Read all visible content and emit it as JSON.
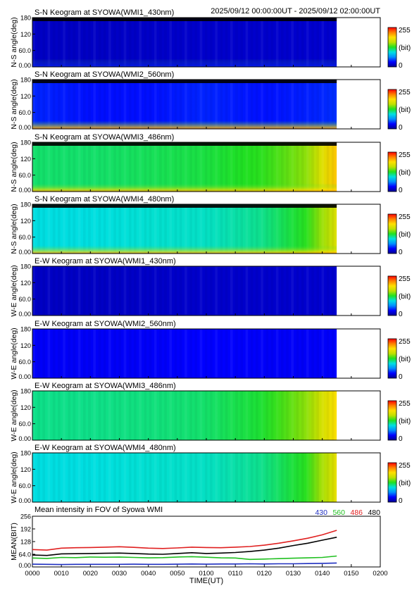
{
  "header": {
    "date_range": "2025/09/12 00:00:00UT - 2025/09/12 02:00:00UT"
  },
  "colorbar": {
    "max_label": "255",
    "unit_label": "(bit)",
    "min_label": "0",
    "colors": [
      "#000090",
      "#0000ff",
      "#0090ff",
      "#00e0e0",
      "#20e020",
      "#c0e000",
      "#ffe000",
      "#ff8000",
      "#ff0000"
    ]
  },
  "chart_data": [
    {
      "type": "heatmap",
      "title": "S-N Keogram at SYOWA(WMI1_430nm)",
      "ylabel": "N-S angle(deg)",
      "yticks": [
        "180",
        "120",
        "60.0",
        "0.00"
      ],
      "ylim": [
        0,
        180
      ],
      "xlim_minutes": [
        0,
        120
      ],
      "data_end_minute": 105,
      "intensity": {
        "time_minutes": [
          0,
          20,
          40,
          60,
          80,
          100,
          105
        ],
        "level_bit": [
          15,
          15,
          16,
          17,
          17,
          18,
          18
        ]
      },
      "edge_enhancement": "low"
    },
    {
      "type": "heatmap",
      "title": "S-N Keogram at SYOWA(WMI2_560nm)",
      "ylabel": "N-S angle(deg)",
      "yticks": [
        "180",
        "120",
        "60.0",
        "0.00"
      ],
      "ylim": [
        0,
        180
      ],
      "xlim_minutes": [
        0,
        120
      ],
      "data_end_minute": 105,
      "intensity": {
        "time_minutes": [
          0,
          20,
          40,
          60,
          80,
          100,
          105
        ],
        "level_bit": [
          40,
          35,
          35,
          40,
          35,
          40,
          42
        ]
      },
      "edge_enhancement": "strong"
    },
    {
      "type": "heatmap",
      "title": "S-N Keogram at SYOWA(WMI3_486nm)",
      "ylabel": "N-S angle(deg)",
      "yticks": [
        "180",
        "120",
        "60.0",
        "0.00"
      ],
      "ylim": [
        0,
        180
      ],
      "xlim_minutes": [
        0,
        120
      ],
      "data_end_minute": 105,
      "intensity": {
        "time_minutes": [
          0,
          20,
          40,
          60,
          80,
          95,
          105
        ],
        "level_bit": [
          115,
          115,
          118,
          122,
          130,
          150,
          200
        ]
      },
      "edge_enhancement": "strong"
    },
    {
      "type": "heatmap",
      "title": "S-N Keogram at SYOWA(WMI4_480nm)",
      "ylabel": "N-S angle(deg)",
      "yticks": [
        "180",
        "120",
        "60.0",
        "0.00"
      ],
      "ylim": [
        0,
        180
      ],
      "xlim_minutes": [
        0,
        120
      ],
      "data_end_minute": 105,
      "intensity": {
        "time_minutes": [
          0,
          20,
          40,
          60,
          80,
          95,
          105
        ],
        "level_bit": [
          95,
          95,
          98,
          100,
          110,
          130,
          175
        ]
      },
      "edge_enhancement": "strong"
    },
    {
      "type": "heatmap",
      "title": "E-W Keogram at SYOWA(WMI1_430nm)",
      "ylabel": "W-E angle(deg)",
      "yticks": [
        "180",
        "120",
        "60.0",
        "0.00"
      ],
      "ylim": [
        0,
        180
      ],
      "xlim_minutes": [
        0,
        120
      ],
      "data_end_minute": 105,
      "intensity": {
        "time_minutes": [
          0,
          20,
          40,
          60,
          80,
          100,
          105
        ],
        "level_bit": [
          15,
          15,
          16,
          17,
          17,
          18,
          18
        ]
      },
      "edge_enhancement": "none"
    },
    {
      "type": "heatmap",
      "title": "E-W Keogram at SYOWA(WMI2_560nm)",
      "ylabel": "W-E angle(deg)",
      "yticks": [
        "180",
        "120",
        "60.0",
        "0.00"
      ],
      "ylim": [
        0,
        180
      ],
      "xlim_minutes": [
        0,
        120
      ],
      "data_end_minute": 105,
      "intensity": {
        "time_minutes": [
          0,
          20,
          40,
          60,
          80,
          100,
          105
        ],
        "level_bit": [
          30,
          30,
          30,
          32,
          30,
          30,
          32
        ]
      },
      "edge_enhancement": "none"
    },
    {
      "type": "heatmap",
      "title": "E-W Keogram at SYOWA(WMI3_486nm)",
      "ylabel": "W-E angle(deg)",
      "yticks": [
        "180",
        "120",
        "60.0",
        "0.00"
      ],
      "ylim": [
        0,
        180
      ],
      "xlim_minutes": [
        0,
        120
      ],
      "data_end_minute": 105,
      "intensity": {
        "time_minutes": [
          0,
          20,
          40,
          60,
          80,
          95,
          105
        ],
        "level_bit": [
          110,
          110,
          112,
          115,
          125,
          150,
          190
        ]
      },
      "edge_enhancement": "none"
    },
    {
      "type": "heatmap",
      "title": "E-W Keogram at SYOWA(WMI4_480nm)",
      "ylabel": "W-E angle(deg)",
      "yticks": [
        "180",
        "120",
        "60.0",
        "0.00"
      ],
      "ylim": [
        0,
        180
      ],
      "xlim_minutes": [
        0,
        120
      ],
      "data_end_minute": 105,
      "intensity": {
        "time_minutes": [
          0,
          20,
          40,
          60,
          80,
          95,
          105
        ],
        "level_bit": [
          95,
          95,
          98,
          100,
          110,
          130,
          180
        ]
      },
      "edge_enhancement": "none"
    },
    {
      "type": "line",
      "title": "Mean intensity in FOV of Syowa WMI",
      "ylabel": "MEAN(BIT)",
      "xlabel": "TIME(UT)",
      "yticks": [
        "256",
        "192",
        "128",
        "64.0",
        "0.00"
      ],
      "ylim": [
        0,
        256
      ],
      "xlim_minutes": [
        0,
        120
      ],
      "xticks": [
        "0000",
        "0010",
        "0020",
        "0030",
        "0040",
        "0050",
        "0100",
        "0110",
        "0120",
        "0130",
        "0140",
        "0150",
        "0200"
      ],
      "x_minutes": [
        0,
        5,
        10,
        15,
        20,
        25,
        30,
        35,
        40,
        45,
        50,
        55,
        60,
        65,
        70,
        75,
        80,
        85,
        90,
        95,
        100,
        105
      ],
      "series": [
        {
          "name": "430",
          "color": "#2030c0",
          "values": [
            14,
            13,
            12,
            13,
            13,
            13,
            13,
            14,
            13,
            13,
            14,
            15,
            14,
            15,
            15,
            16,
            15,
            16,
            16,
            17,
            18,
            20
          ]
        },
        {
          "name": "560",
          "color": "#20c020",
          "values": [
            45,
            43,
            48,
            47,
            50,
            49,
            50,
            48,
            46,
            47,
            50,
            52,
            49,
            46,
            45,
            38,
            40,
            42,
            44,
            46,
            48,
            55
          ]
        },
        {
          "name": "486",
          "color": "#e02020",
          "values": [
            88,
            85,
            95,
            97,
            98,
            100,
            102,
            99,
            95,
            93,
            96,
            100,
            98,
            97,
            100,
            103,
            110,
            120,
            132,
            145,
            162,
            185
          ]
        },
        {
          "name": "480",
          "color": "#000000",
          "values": [
            60,
            58,
            66,
            67,
            68,
            69,
            70,
            68,
            65,
            64,
            68,
            72,
            68,
            70,
            73,
            78,
            85,
            95,
            108,
            120,
            135,
            150
          ]
        }
      ]
    }
  ]
}
